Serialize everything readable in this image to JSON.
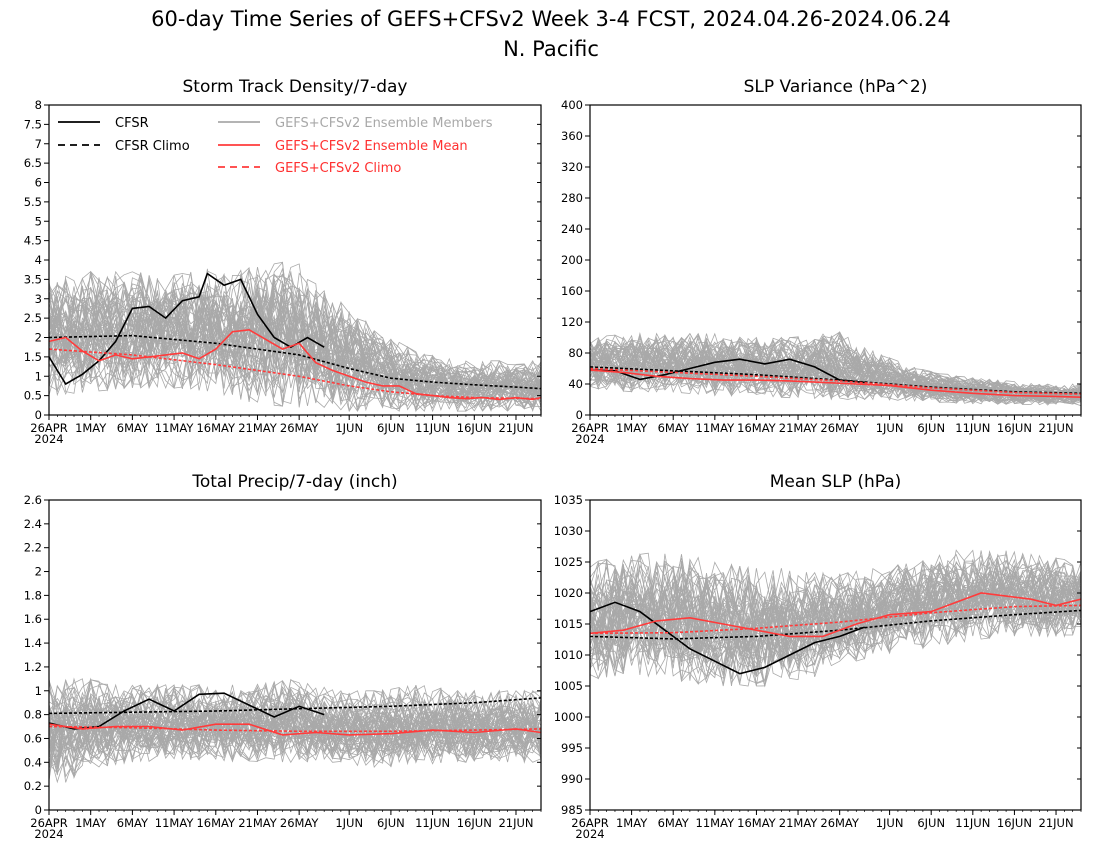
{
  "figure": {
    "title": "60-day Time Series of GEFS+CFSv2 Week 3-4 FCST, 2024.04.26-2024.06.24",
    "region": "N. Pacific"
  },
  "legend": {
    "items": [
      {
        "label": "CFSR",
        "color": "#000000",
        "dash": "solid"
      },
      {
        "label": "CFSR Climo",
        "color": "#000000",
        "dash": "dashed"
      },
      {
        "label": "GEFS+CFSv2 Ensemble Members",
        "color": "#aaaaaa",
        "dash": "solid"
      },
      {
        "label": "GEFS+CFSv2 Ensemble Mean",
        "color": "#ff3b3b",
        "dash": "solid"
      },
      {
        "label": "GEFS+CFSv2 Climo",
        "color": "#ff3b3b",
        "dash": "dashed"
      }
    ]
  },
  "chart_data": [
    {
      "type": "line",
      "title": "Storm Track Density/7-day",
      "ylim": [
        0,
        8
      ],
      "ytick_labels": [
        "0",
        "0.5",
        "1",
        "1.5",
        "2",
        "2.5",
        "3",
        "3.5",
        "4",
        "4.5",
        "5",
        "5.5",
        "6",
        "6.5",
        "7",
        "7.5",
        "8"
      ],
      "xlim": [
        "2024-04-26",
        "2024-06-24"
      ],
      "xtick_labels": [
        "26APR",
        "1MAY",
        "6MAY",
        "11MAY",
        "16MAY",
        "21MAY",
        "26MAY",
        "1JUN",
        "6JUN",
        "11JUN",
        "16JUN",
        "21JUN"
      ],
      "xtick_year": "2024",
      "members": {
        "count": 60,
        "band_low": [
          0.5,
          0.6,
          0.7,
          0.7,
          0.6,
          0.3,
          0.2,
          0.1,
          0.1,
          0.1,
          0.1,
          0.1,
          0.1
        ],
        "band_high": [
          3.5,
          3.7,
          3.7,
          3.6,
          3.8,
          3.8,
          4.0,
          3.0,
          2.2,
          1.6,
          1.4,
          1.4,
          1.4
        ]
      },
      "series": [
        {
          "name": "CFSR",
          "style": "solid",
          "color": "#000000",
          "x": [
            "2024-04-26",
            "2024-04-28",
            "2024-04-30",
            "2024-05-02",
            "2024-05-04",
            "2024-05-06",
            "2024-05-08",
            "2024-05-10",
            "2024-05-12",
            "2024-05-14",
            "2024-05-15",
            "2024-05-17",
            "2024-05-19",
            "2024-05-21",
            "2024-05-23",
            "2024-05-25",
            "2024-05-27",
            "2024-05-29"
          ],
          "y": [
            1.5,
            0.8,
            1.05,
            1.4,
            1.9,
            2.75,
            2.8,
            2.5,
            2.95,
            3.05,
            3.65,
            3.35,
            3.5,
            2.6,
            2.0,
            1.75,
            2.0,
            1.75
          ]
        },
        {
          "name": "CFSR Climo",
          "style": "dashed",
          "color": "#000000",
          "x": [
            "2024-04-26",
            "2024-05-06",
            "2024-05-16",
            "2024-05-26",
            "2024-06-01",
            "2024-06-06",
            "2024-06-11",
            "2024-06-16",
            "2024-06-21",
            "2024-06-24"
          ],
          "y": [
            2.0,
            2.05,
            1.85,
            1.55,
            1.2,
            0.95,
            0.85,
            0.78,
            0.72,
            0.68
          ]
        },
        {
          "name": "GEFS+CFSv2 Ensemble Mean",
          "style": "solid",
          "color": "#ff3b3b",
          "x": [
            "2024-04-26",
            "2024-04-28",
            "2024-04-30",
            "2024-05-02",
            "2024-05-04",
            "2024-05-06",
            "2024-05-08",
            "2024-05-10",
            "2024-05-12",
            "2024-05-14",
            "2024-05-16",
            "2024-05-18",
            "2024-05-20",
            "2024-05-22",
            "2024-05-24",
            "2024-05-26",
            "2024-05-28",
            "2024-05-30",
            "2024-06-01",
            "2024-06-03",
            "2024-06-05",
            "2024-06-07",
            "2024-06-09",
            "2024-06-11",
            "2024-06-13",
            "2024-06-15",
            "2024-06-17",
            "2024-06-19",
            "2024-06-21",
            "2024-06-23",
            "2024-06-24"
          ],
          "y": [
            1.9,
            2.0,
            1.65,
            1.4,
            1.55,
            1.45,
            1.5,
            1.55,
            1.6,
            1.45,
            1.7,
            2.15,
            2.2,
            1.95,
            1.7,
            1.85,
            1.35,
            1.15,
            1.0,
            0.85,
            0.75,
            0.75,
            0.55,
            0.5,
            0.45,
            0.42,
            0.45,
            0.4,
            0.45,
            0.4,
            0.45
          ]
        },
        {
          "name": "GEFS+CFSv2 Climo",
          "style": "dashed",
          "color": "#ff3b3b",
          "x": [
            "2024-04-26",
            "2024-05-06",
            "2024-05-16",
            "2024-05-26",
            "2024-06-01",
            "2024-06-06",
            "2024-06-11",
            "2024-06-16",
            "2024-06-21",
            "2024-06-24"
          ],
          "y": [
            1.7,
            1.55,
            1.3,
            1.0,
            0.75,
            0.6,
            0.5,
            0.45,
            0.43,
            0.42
          ]
        }
      ]
    },
    {
      "type": "line",
      "title": "SLP Variance (hPa^2)",
      "ylim": [
        0,
        400
      ],
      "ytick_labels": [
        "0",
        "40",
        "80",
        "120",
        "160",
        "200",
        "240",
        "280",
        "320",
        "360",
        "400"
      ],
      "xlim": [
        "2024-04-26",
        "2024-06-24"
      ],
      "xtick_labels": [
        "26APR",
        "1MAY",
        "6MAY",
        "11MAY",
        "16MAY",
        "21MAY",
        "26MAY",
        "1JUN",
        "6JUN",
        "11JUN",
        "16JUN",
        "21JUN"
      ],
      "xtick_year": "2024",
      "members": {
        "count": 60,
        "band_low": [
          35,
          30,
          30,
          25,
          25,
          22,
          20,
          20,
          18,
          15,
          14,
          13,
          12
        ],
        "band_high": [
          100,
          105,
          105,
          105,
          100,
          100,
          110,
          80,
          60,
          50,
          45,
          40,
          40
        ]
      },
      "series": [
        {
          "name": "CFSR",
          "style": "solid",
          "color": "#000000",
          "x": [
            "2024-04-26",
            "2024-04-29",
            "2024-05-02",
            "2024-05-05",
            "2024-05-08",
            "2024-05-11",
            "2024-05-14",
            "2024-05-17",
            "2024-05-20",
            "2024-05-23",
            "2024-05-26",
            "2024-05-29"
          ],
          "y": [
            58,
            57,
            46,
            52,
            60,
            68,
            72,
            66,
            72,
            62,
            45,
            42
          ]
        },
        {
          "name": "CFSR Climo",
          "style": "dashed",
          "color": "#000000",
          "x": [
            "2024-04-26",
            "2024-05-06",
            "2024-05-16",
            "2024-05-26",
            "2024-06-06",
            "2024-06-16",
            "2024-06-24"
          ],
          "y": [
            62,
            57,
            52,
            45,
            36,
            30,
            28
          ]
        },
        {
          "name": "GEFS+CFSv2 Ensemble Mean",
          "style": "solid",
          "color": "#ff3b3b",
          "x": [
            "2024-04-26",
            "2024-04-30",
            "2024-05-04",
            "2024-05-08",
            "2024-05-12",
            "2024-05-16",
            "2024-05-20",
            "2024-05-24",
            "2024-05-28",
            "2024-06-01",
            "2024-06-06",
            "2024-06-11",
            "2024-06-16",
            "2024-06-21",
            "2024-06-24"
          ],
          "y": [
            58,
            55,
            50,
            47,
            45,
            45,
            44,
            42,
            40,
            38,
            32,
            28,
            25,
            24,
            23
          ]
        },
        {
          "name": "GEFS+CFSv2 Climo",
          "style": "dashed",
          "color": "#ff3b3b",
          "x": [
            "2024-04-26",
            "2024-05-06",
            "2024-05-16",
            "2024-05-26",
            "2024-06-06",
            "2024-06-16",
            "2024-06-24"
          ],
          "y": [
            60,
            55,
            50,
            44,
            35,
            29,
            27
          ]
        }
      ]
    },
    {
      "type": "line",
      "title": "Total Precip/7-day (inch)",
      "ylim": [
        0,
        2.6
      ],
      "ytick_labels": [
        "0",
        "0.2",
        "0.4",
        "0.6",
        "0.8",
        "1",
        "1.2",
        "1.4",
        "1.6",
        "1.8",
        "2",
        "2.2",
        "2.4",
        "2.6"
      ],
      "xlim": [
        "2024-04-26",
        "2024-06-24"
      ],
      "xtick_labels": [
        "26APR",
        "1MAY",
        "6MAY",
        "11MAY",
        "16MAY",
        "21MAY",
        "26MAY",
        "1JUN",
        "6JUN",
        "11JUN",
        "16JUN",
        "21JUN"
      ],
      "xtick_year": "2024",
      "members": {
        "count": 60,
        "band_low": [
          0.15,
          0.35,
          0.4,
          0.42,
          0.42,
          0.4,
          0.4,
          0.4,
          0.35,
          0.38,
          0.4,
          0.4,
          0.4
        ],
        "band_high": [
          1.1,
          1.1,
          1.05,
          1.05,
          1.05,
          1.05,
          1.1,
          1.0,
          1.0,
          1.05,
          1.0,
          1.0,
          1.0
        ]
      },
      "series": [
        {
          "name": "CFSR",
          "style": "solid",
          "color": "#000000",
          "x": [
            "2024-04-26",
            "2024-04-29",
            "2024-05-02",
            "2024-05-05",
            "2024-05-08",
            "2024-05-11",
            "2024-05-14",
            "2024-05-17",
            "2024-05-20",
            "2024-05-23",
            "2024-05-26",
            "2024-05-29"
          ],
          "y": [
            0.73,
            0.68,
            0.7,
            0.83,
            0.93,
            0.83,
            0.97,
            0.98,
            0.88,
            0.78,
            0.87,
            0.8
          ]
        },
        {
          "name": "CFSR Climo",
          "style": "dashed",
          "color": "#000000",
          "x": [
            "2024-04-26",
            "2024-05-06",
            "2024-05-16",
            "2024-05-26",
            "2024-06-06",
            "2024-06-16",
            "2024-06-24"
          ],
          "y": [
            0.81,
            0.82,
            0.83,
            0.85,
            0.87,
            0.9,
            0.94
          ]
        },
        {
          "name": "GEFS+CFSv2 Ensemble Mean",
          "style": "solid",
          "color": "#ff3b3b",
          "x": [
            "2024-04-26",
            "2024-04-30",
            "2024-05-04",
            "2024-05-08",
            "2024-05-12",
            "2024-05-16",
            "2024-05-20",
            "2024-05-24",
            "2024-05-28",
            "2024-06-01",
            "2024-06-06",
            "2024-06-11",
            "2024-06-16",
            "2024-06-21",
            "2024-06-24"
          ],
          "y": [
            0.72,
            0.68,
            0.7,
            0.7,
            0.67,
            0.72,
            0.72,
            0.63,
            0.65,
            0.63,
            0.64,
            0.67,
            0.65,
            0.68,
            0.65
          ]
        },
        {
          "name": "GEFS+CFSv2 Climo",
          "style": "dashed",
          "color": "#ff3b3b",
          "x": [
            "2024-04-26",
            "2024-05-06",
            "2024-05-16",
            "2024-05-26",
            "2024-06-06",
            "2024-06-16",
            "2024-06-24"
          ],
          "y": [
            0.7,
            0.69,
            0.67,
            0.66,
            0.66,
            0.67,
            0.68
          ]
        }
      ]
    },
    {
      "type": "line",
      "title": "Mean SLP (hPa)",
      "ylim": [
        985,
        1035
      ],
      "ytick_labels": [
        "985",
        "990",
        "995",
        "1000",
        "1005",
        "1010",
        "1015",
        "1020",
        "1025",
        "1030",
        "1035"
      ],
      "xlim": [
        "2024-04-26",
        "2024-06-24"
      ],
      "xtick_labels": [
        "26APR",
        "1MAY",
        "6MAY",
        "11MAY",
        "16MAY",
        "21MAY",
        "26MAY",
        "1JUN",
        "6JUN",
        "11JUN",
        "16JUN",
        "21JUN"
      ],
      "xtick_year": "2024",
      "members": {
        "count": 60,
        "band_low": [
          1006,
          1007,
          1006,
          1005,
          1005,
          1005,
          1008,
          1010,
          1011,
          1012,
          1013,
          1013,
          1013
        ],
        "band_high": [
          1025,
          1026,
          1027,
          1025,
          1024,
          1024,
          1023,
          1024,
          1025,
          1027,
          1027,
          1026,
          1025
        ]
      },
      "series": [
        {
          "name": "CFSR",
          "style": "solid",
          "color": "#000000",
          "x": [
            "2024-04-26",
            "2024-04-29",
            "2024-05-02",
            "2024-05-05",
            "2024-05-08",
            "2024-05-11",
            "2024-05-14",
            "2024-05-17",
            "2024-05-20",
            "2024-05-23",
            "2024-05-26",
            "2024-05-29"
          ],
          "y": [
            1017,
            1018.5,
            1017,
            1014,
            1011,
            1009,
            1007,
            1008,
            1010,
            1012,
            1013,
            1014.5
          ]
        },
        {
          "name": "CFSR Climo",
          "style": "dashed",
          "color": "#000000",
          "x": [
            "2024-04-26",
            "2024-05-06",
            "2024-05-16",
            "2024-05-26",
            "2024-06-06",
            "2024-06-16",
            "2024-06-24"
          ],
          "y": [
            1013,
            1012.6,
            1013,
            1014,
            1015.5,
            1016.5,
            1017.2
          ]
        },
        {
          "name": "GEFS+CFSv2 Ensemble Mean",
          "style": "solid",
          "color": "#ff3b3b",
          "x": [
            "2024-04-26",
            "2024-04-30",
            "2024-05-04",
            "2024-05-08",
            "2024-05-12",
            "2024-05-16",
            "2024-05-20",
            "2024-05-24",
            "2024-05-28",
            "2024-06-01",
            "2024-06-06",
            "2024-06-09",
            "2024-06-12",
            "2024-06-15",
            "2024-06-18",
            "2024-06-21",
            "2024-06-24"
          ],
          "y": [
            1013.5,
            1014,
            1015.5,
            1016,
            1015,
            1014,
            1013,
            1013,
            1015,
            1016.5,
            1017,
            1018.5,
            1020,
            1019.5,
            1019,
            1018,
            1019
          ]
        },
        {
          "name": "GEFS+CFSv2 Climo",
          "style": "dashed",
          "color": "#ff3b3b",
          "x": [
            "2024-04-26",
            "2024-05-06",
            "2024-05-16",
            "2024-05-26",
            "2024-06-06",
            "2024-06-16",
            "2024-06-24"
          ],
          "y": [
            1013.5,
            1013.6,
            1014.3,
            1015.3,
            1016.8,
            1017.8,
            1018
          ]
        }
      ]
    }
  ]
}
